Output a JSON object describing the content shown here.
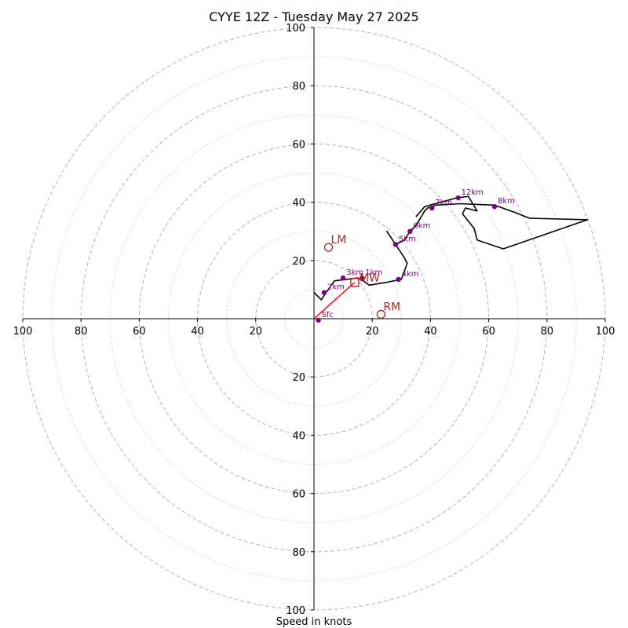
{
  "chart_data": {
    "type": "scatter",
    "title": "CYYE 12Z - Tuesday May 27 2025",
    "xlabel": "Speed in knots",
    "ring_max": 100,
    "rings_major": [
      20,
      40,
      60,
      80,
      100
    ],
    "rings_minor": [
      10,
      30,
      50,
      70,
      90
    ],
    "tick_labels": {
      "x_right": [
        "20",
        "40",
        "60",
        "80",
        "100"
      ],
      "x_left": [
        "100",
        "80",
        "60",
        "40",
        "20"
      ],
      "y_top": [
        "100",
        "80",
        "60",
        "40",
        "20"
      ],
      "y_bottom": [
        "20",
        "40",
        "60",
        "80",
        "100"
      ]
    },
    "x_tick_values_right": [
      20,
      40,
      60,
      80,
      100
    ],
    "x_tick_values_left": [
      -100,
      -80,
      -60,
      -40,
      -20
    ],
    "y_tick_values_top": [
      100,
      80,
      60,
      40,
      20
    ],
    "y_tick_values_bottom": [
      -20,
      -40,
      -60,
      -80,
      -100
    ],
    "hodograph_color": "#000000",
    "height_marker_color": "#800080",
    "storm_color": "#b22222",
    "hodograph": {
      "u": [
        0,
        2.5,
        3.5,
        7,
        15,
        17,
        19,
        25,
        30,
        32,
        31,
        25,
        28,
        31,
        33,
        35,
        38,
        39,
        42,
        50,
        62,
        69,
        74,
        94,
        91,
        65,
        56,
        55,
        51,
        52,
        56,
        53,
        49,
        38,
        35
      ],
      "v": [
        9,
        6.5,
        8,
        13,
        14,
        13,
        11.5,
        12.5,
        13.5,
        19,
        21,
        30,
        25.5,
        27,
        30,
        32,
        37,
        38,
        39,
        39.5,
        39,
        36.5,
        34.5,
        34,
        33,
        24,
        27,
        31,
        36,
        38,
        37,
        42,
        41.5,
        38.5,
        35
      ]
    },
    "height_markers": [
      {
        "label": "Sfc",
        "u": 1.5,
        "v": -0.5
      },
      {
        "label": "1km",
        "u": 16.5,
        "v": 14
      },
      {
        "label": "2km",
        "u": 3.5,
        "v": 9
      },
      {
        "label": "3km",
        "u": 10,
        "v": 14
      },
      {
        "label": "4km",
        "u": 29,
        "v": 13.5
      },
      {
        "label": "5km",
        "u": 28,
        "v": 25.5
      },
      {
        "label": "6km",
        "u": 33,
        "v": 30
      },
      {
        "label": "7km",
        "u": 40.5,
        "v": 38
      },
      {
        "label": "8km",
        "u": 62,
        "v": 38.5
      },
      {
        "label": "12km",
        "u": 49.5,
        "v": 41.5
      }
    ],
    "storm_motion": [
      {
        "label": "LM",
        "u": 5,
        "v": 24.5
      },
      {
        "label": "RM",
        "u": 23,
        "v": 1.5
      }
    ],
    "mean_wind": {
      "label": "MW",
      "u": 14,
      "v": 12.5
    },
    "shear_vector": {
      "from_u": 0,
      "from_v": 0,
      "to_u": 14,
      "to_v": 12.5
    }
  }
}
